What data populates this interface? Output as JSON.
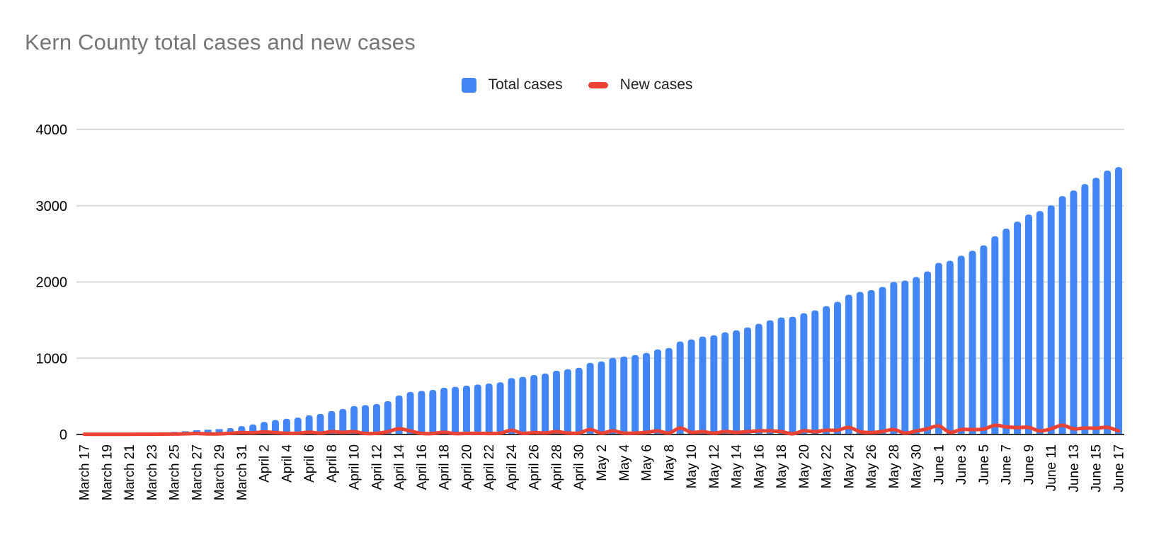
{
  "title": "Kern County total cases and new cases",
  "legend": [
    {
      "label": "Total cases",
      "color": "#4285F4",
      "shape": "square"
    },
    {
      "label": "New cases",
      "color": "#EA4335",
      "shape": "line"
    }
  ],
  "colors": {
    "bar": "#4285F4",
    "line": "#EA4335",
    "grid": "#D9D9D9",
    "axis": "#333333",
    "title": "#757575",
    "tick_text": "#000000"
  },
  "chart_data": {
    "type": "bar",
    "title": "Kern County total cases and new cases",
    "xlabel": "",
    "ylabel": "",
    "ylim": [
      0,
      4000
    ],
    "y_ticks": [
      0,
      1000,
      2000,
      3000,
      4000
    ],
    "x_tick_every": 2,
    "grid": true,
    "legend_position": "top-center",
    "categories": [
      "March 17",
      "March 18",
      "March 19",
      "March 20",
      "March 21",
      "March 22",
      "March 23",
      "March 24",
      "March 25",
      "March 26",
      "March 27",
      "March 28",
      "March 29",
      "March 30",
      "March 31",
      "April 1",
      "April 2",
      "April 3",
      "April 4",
      "April 5",
      "April 6",
      "April 7",
      "April 8",
      "April 9",
      "April 10",
      "April 11",
      "April 12",
      "April 13",
      "April 14",
      "April 15",
      "April 16",
      "April 17",
      "April 18",
      "April 19",
      "April 20",
      "April 21",
      "April 22",
      "April 23",
      "April 24",
      "April 25",
      "April 26",
      "April 27",
      "April 28",
      "April 29",
      "April 30",
      "May 1",
      "May 2",
      "May 3",
      "May 4",
      "May 5",
      "May 6",
      "May 7",
      "May 8",
      "May 9",
      "May 10",
      "May 11",
      "May 12",
      "May 13",
      "May 14",
      "May 15",
      "May 16",
      "May 17",
      "May 18",
      "May 19",
      "May 20",
      "May 21",
      "May 22",
      "May 23",
      "May 24",
      "May 25",
      "May 26",
      "May 27",
      "May 28",
      "May 29",
      "May 30",
      "May 31",
      "June 1",
      "June 2",
      "June 3",
      "June 4",
      "June 5",
      "June 6",
      "June 7",
      "June 8",
      "June 9",
      "June 10",
      "June 11",
      "June 12",
      "June 13",
      "June 14",
      "June 15",
      "June 16",
      "June 17"
    ],
    "series": [
      {
        "name": "Total cases",
        "type": "bar",
        "color": "#4285F4",
        "values": [
          4,
          6,
          8,
          11,
          14,
          18,
          22,
          27,
          33,
          42,
          55,
          62,
          70,
          85,
          110,
          132,
          165,
          190,
          206,
          222,
          252,
          270,
          307,
          335,
          372,
          385,
          400,
          437,
          512,
          558,
          572,
          585,
          614,
          625,
          640,
          655,
          668,
          685,
          740,
          755,
          780,
          800,
          837,
          856,
          875,
          940,
          958,
          1005,
          1023,
          1042,
          1070,
          1116,
          1135,
          1219,
          1247,
          1284,
          1302,
          1340,
          1367,
          1405,
          1451,
          1498,
          1535,
          1544,
          1591,
          1628,
          1684,
          1740,
          1833,
          1870,
          1895,
          1935,
          2000,
          2019,
          2065,
          2139,
          2251,
          2279,
          2344,
          2409,
          2480,
          2600,
          2700,
          2791,
          2884,
          2930,
          3005,
          3126,
          3200,
          3284,
          3367,
          3460,
          3507
        ]
      },
      {
        "name": "New cases",
        "type": "line",
        "color": "#EA4335",
        "values": [
          4,
          2,
          2,
          3,
          3,
          4,
          4,
          5,
          6,
          9,
          13,
          7,
          8,
          15,
          25,
          22,
          33,
          25,
          16,
          16,
          30,
          18,
          37,
          28,
          37,
          13,
          15,
          37,
          75,
          46,
          14,
          13,
          29,
          11,
          15,
          15,
          13,
          17,
          55,
          15,
          25,
          20,
          37,
          19,
          19,
          65,
          18,
          47,
          18,
          19,
          28,
          46,
          19,
          84,
          28,
          37,
          18,
          38,
          27,
          38,
          46,
          47,
          37,
          9,
          47,
          37,
          56,
          56,
          93,
          37,
          25,
          40,
          65,
          19,
          46,
          74,
          112,
          28,
          65,
          65,
          71,
          120,
          100,
          91,
          93,
          46,
          75,
          121,
          74,
          84,
          83,
          93,
          47
        ]
      }
    ]
  }
}
